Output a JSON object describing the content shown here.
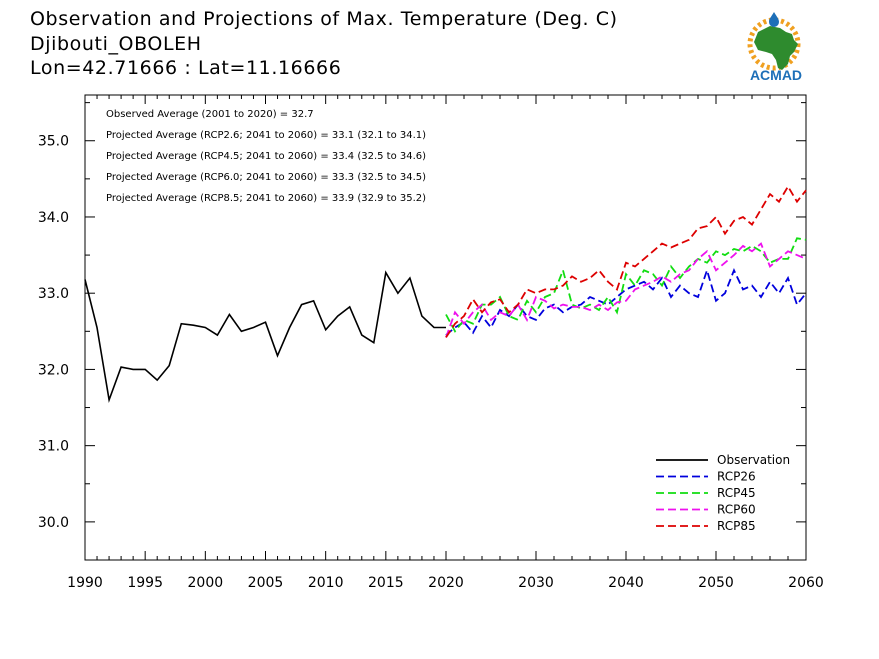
{
  "header": {
    "title": "Observation and Projections of Max. Temperature (Deg. C)",
    "station": "Djibouti_OBOLEH",
    "coords": "Lon=42.71666 : Lat=11.16666"
  },
  "logo": {
    "text": "ACMAD",
    "colors": {
      "africa": "#2e8b2e",
      "text": "#1d6fb8",
      "sun": "#f0a020",
      "drop": "#1d6fb8"
    }
  },
  "annotations": [
    "Observed Average (2001 to 2020) = 32.7",
    "Projected Average (RCP2.6; 2041 to 2060) = 33.1 (32.1 to 34.1)",
    "Projected Average (RCP4.5; 2041 to 2060) = 33.4 (32.5 to 34.6)",
    "Projected Average (RCP6.0; 2041 to 2060) = 33.3 (32.5 to 34.5)",
    "Projected Average (RCP8.5; 2041 to 2060) = 33.9 (32.9 to 35.2)"
  ],
  "chart_data": {
    "type": "line",
    "ylim": [
      29.5,
      35.6
    ],
    "y_ticks": [
      30.0,
      31.0,
      32.0,
      33.0,
      34.0,
      35.0
    ],
    "y_tick_labels": [
      "30.0",
      "31.0",
      "32.0",
      "33.0",
      "34.0",
      "35.0"
    ],
    "x_ticks_left": [
      1990,
      1995,
      2000,
      2005,
      2010,
      2015,
      2020
    ],
    "x_ticks_right": [
      2020,
      2030,
      2040,
      2050,
      2060
    ],
    "x_tick_labels": [
      "1990",
      "1995",
      "2000",
      "2005",
      "2010",
      "2015",
      "2020",
      "2030",
      "2040",
      "2050",
      "2060"
    ],
    "legend_position": "bottom-right",
    "series": [
      {
        "name": "Observation",
        "color": "#000000",
        "dash": false,
        "x": [
          1990,
          1991,
          1992,
          1993,
          1994,
          1995,
          1996,
          1997,
          1998,
          1999,
          2000,
          2001,
          2002,
          2003,
          2004,
          2005,
          2006,
          2007,
          2008,
          2009,
          2010,
          2011,
          2012,
          2013,
          2014,
          2015,
          2016,
          2017,
          2018,
          2019,
          2020
        ],
        "y": [
          33.18,
          32.55,
          31.6,
          32.03,
          32.0,
          32.0,
          31.86,
          32.05,
          32.6,
          32.58,
          32.55,
          32.45,
          32.72,
          32.5,
          32.55,
          32.62,
          32.18,
          32.55,
          32.85,
          32.9,
          32.52,
          32.7,
          32.82,
          32.45,
          32.35,
          33.27,
          33.0,
          33.2,
          32.7,
          32.55,
          32.55
        ]
      },
      {
        "name": "RCP26",
        "color": "#0000dd",
        "dash": true,
        "x": [
          2020,
          2021,
          2022,
          2023,
          2024,
          2025,
          2026,
          2027,
          2028,
          2029,
          2030,
          2031,
          2032,
          2033,
          2034,
          2035,
          2036,
          2037,
          2038,
          2039,
          2040,
          2041,
          2042,
          2043,
          2044,
          2045,
          2046,
          2047,
          2048,
          2049,
          2050,
          2051,
          2052,
          2053,
          2054,
          2055,
          2056,
          2057,
          2058,
          2059,
          2060
        ],
        "y": [
          32.45,
          32.55,
          32.62,
          32.48,
          32.7,
          32.55,
          32.78,
          32.7,
          32.85,
          32.7,
          32.65,
          32.8,
          32.85,
          32.75,
          32.82,
          32.85,
          32.95,
          32.9,
          32.85,
          32.95,
          33.05,
          33.1,
          33.15,
          33.05,
          33.2,
          32.95,
          33.1,
          33.0,
          32.95,
          33.3,
          32.9,
          33.0,
          33.3,
          33.05,
          33.1,
          32.95,
          33.15,
          33.0,
          33.2,
          32.85,
          33.0
        ]
      },
      {
        "name": "RCP45",
        "color": "#11dd11",
        "dash": true,
        "x": [
          2020,
          2021,
          2022,
          2023,
          2024,
          2025,
          2026,
          2027,
          2028,
          2029,
          2030,
          2031,
          2032,
          2033,
          2034,
          2035,
          2036,
          2037,
          2038,
          2039,
          2040,
          2041,
          2042,
          2043,
          2044,
          2045,
          2046,
          2047,
          2048,
          2049,
          2050,
          2051,
          2052,
          2053,
          2054,
          2055,
          2056,
          2057,
          2058,
          2059,
          2060
        ],
        "y": [
          32.72,
          32.5,
          32.65,
          32.6,
          32.85,
          32.85,
          32.95,
          32.7,
          32.65,
          32.9,
          32.75,
          32.95,
          33.0,
          33.3,
          32.85,
          32.8,
          32.85,
          32.78,
          32.95,
          32.75,
          33.25,
          33.1,
          33.3,
          33.25,
          33.1,
          33.35,
          33.2,
          33.35,
          33.45,
          33.4,
          33.55,
          33.5,
          33.58,
          33.55,
          33.62,
          33.55,
          33.4,
          33.45,
          33.45,
          33.72,
          33.7
        ]
      },
      {
        "name": "RCP60",
        "color": "#ee11ee",
        "dash": true,
        "x": [
          2020,
          2021,
          2022,
          2023,
          2024,
          2025,
          2026,
          2027,
          2028,
          2029,
          2030,
          2031,
          2032,
          2033,
          2034,
          2035,
          2036,
          2037,
          2038,
          2039,
          2040,
          2041,
          2042,
          2043,
          2044,
          2045,
          2046,
          2047,
          2048,
          2049,
          2050,
          2051,
          2052,
          2053,
          2054,
          2055,
          2056,
          2057,
          2058,
          2059,
          2060
        ],
        "y": [
          32.42,
          32.75,
          32.6,
          32.75,
          32.85,
          32.65,
          32.75,
          32.7,
          32.85,
          32.65,
          32.95,
          32.9,
          32.8,
          32.85,
          32.82,
          32.82,
          32.78,
          32.85,
          32.78,
          32.88,
          32.9,
          33.05,
          33.1,
          33.15,
          33.22,
          33.15,
          33.25,
          33.3,
          33.45,
          33.55,
          33.3,
          33.4,
          33.5,
          33.62,
          33.55,
          33.65,
          33.35,
          33.45,
          33.55,
          33.5,
          33.45
        ]
      },
      {
        "name": "RCP85",
        "color": "#dd0000",
        "dash": true,
        "x": [
          2020,
          2021,
          2022,
          2023,
          2024,
          2025,
          2026,
          2027,
          2028,
          2029,
          2030,
          2031,
          2032,
          2033,
          2034,
          2035,
          2036,
          2037,
          2038,
          2039,
          2040,
          2041,
          2042,
          2043,
          2044,
          2045,
          2046,
          2047,
          2048,
          2049,
          2050,
          2051,
          2052,
          2053,
          2054,
          2055,
          2056,
          2057,
          2058,
          2059,
          2060
        ],
        "y": [
          32.42,
          32.6,
          32.7,
          32.92,
          32.75,
          32.88,
          32.92,
          32.75,
          32.85,
          33.05,
          33.0,
          33.05,
          33.05,
          33.1,
          33.22,
          33.15,
          33.2,
          33.3,
          33.15,
          33.05,
          33.4,
          33.35,
          33.45,
          33.55,
          33.65,
          33.6,
          33.65,
          33.7,
          33.85,
          33.88,
          34.0,
          33.78,
          33.95,
          34.0,
          33.9,
          34.1,
          34.3,
          34.2,
          34.4,
          34.2,
          34.35
        ]
      }
    ]
  }
}
